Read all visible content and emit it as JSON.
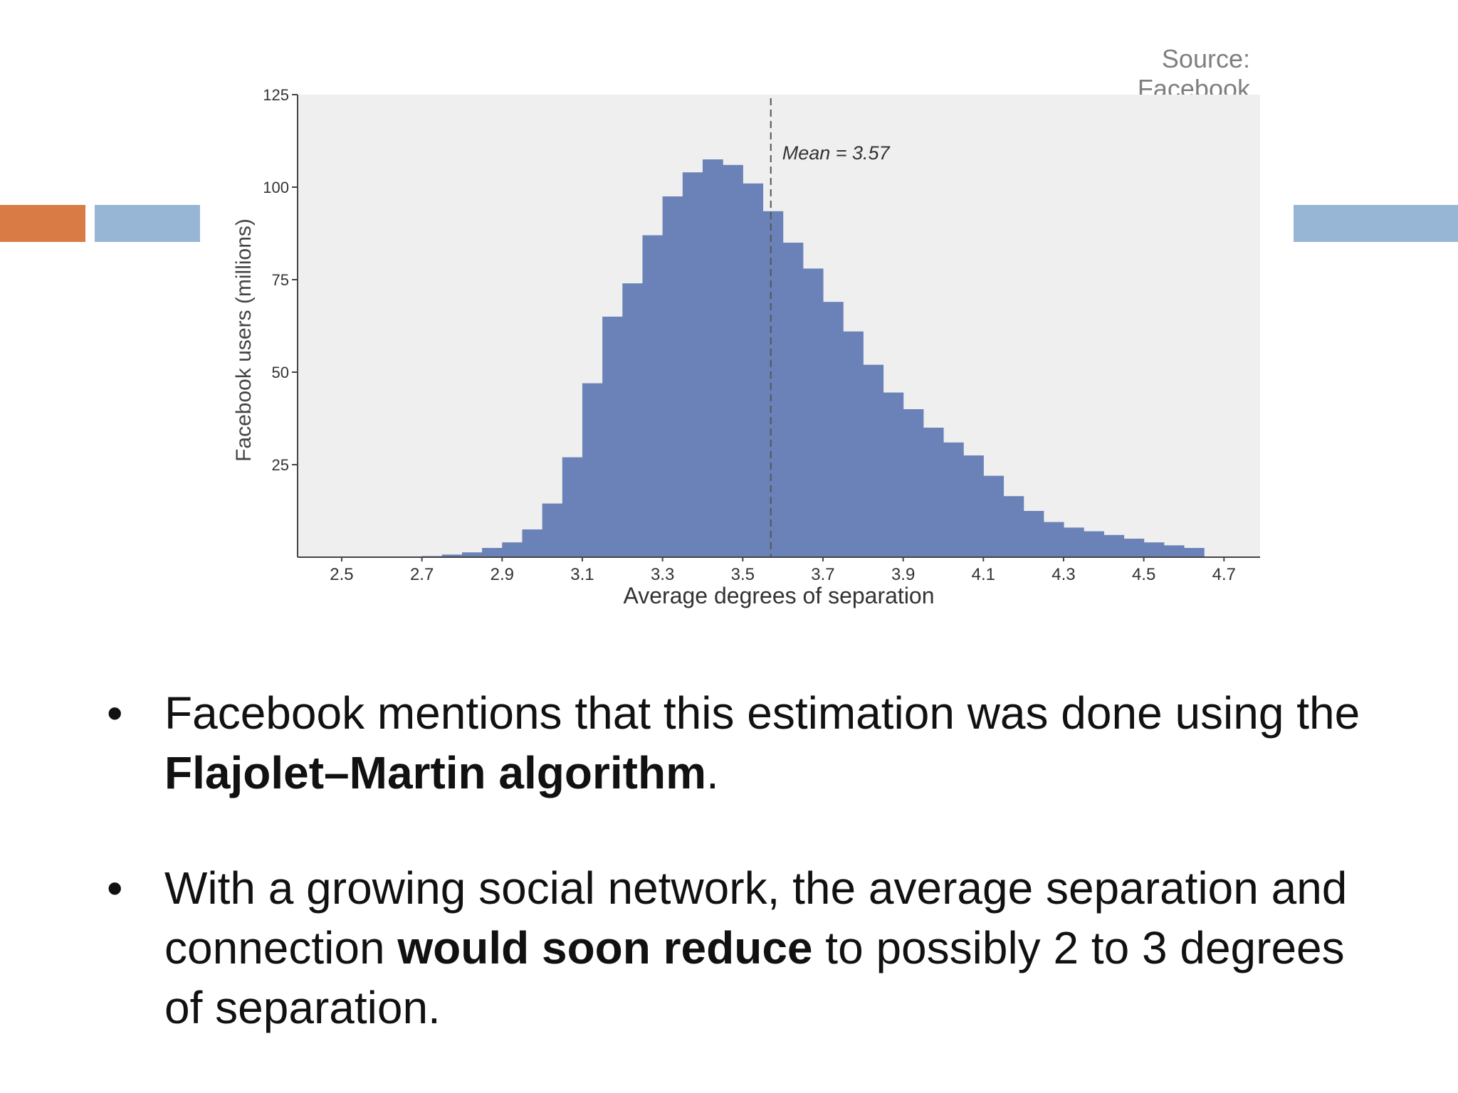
{
  "source": "Source: Facebook",
  "colors": {
    "accent_orange": "#d97b45",
    "accent_blue": "#97b6d6",
    "bar_fill": "#6b82b8",
    "plot_background": "#efefef"
  },
  "chart_data": {
    "type": "bar",
    "title": "",
    "xlabel": "Average degrees of separation",
    "ylabel": "Facebook users (millions)",
    "xlim": [
      2.39,
      4.79
    ],
    "ylim": [
      0,
      125
    ],
    "x_ticks": [
      "2.5",
      "2.7",
      "2.9",
      "3.1",
      "3.3",
      "3.5",
      "3.7",
      "3.9",
      "4.1",
      "4.3",
      "4.5",
      "4.7"
    ],
    "y_ticks": [
      "25",
      "50",
      "75",
      "100",
      "125"
    ],
    "bin_width": 0.05,
    "bin_starts": [
      2.7,
      2.75,
      2.8,
      2.85,
      2.9,
      2.95,
      3.0,
      3.05,
      3.1,
      3.15,
      3.2,
      3.25,
      3.3,
      3.35,
      3.4,
      3.45,
      3.5,
      3.55,
      3.6,
      3.65,
      3.7,
      3.75,
      3.8,
      3.85,
      3.9,
      3.95,
      4.0,
      4.05,
      4.1,
      4.15,
      4.2,
      4.25,
      4.3,
      4.35,
      4.4,
      4.45,
      4.5,
      4.55,
      4.6
    ],
    "values": [
      0.3,
      0.7,
      1.3,
      2.5,
      4,
      7.5,
      14.5,
      27,
      47,
      65,
      74,
      87,
      97.5,
      104,
      107.5,
      106,
      101,
      93.5,
      85,
      78,
      69,
      61,
      52,
      44.5,
      40,
      35,
      31,
      27.5,
      22,
      16.5,
      12.5,
      9.5,
      8,
      7,
      6,
      5,
      4,
      3.2,
      2.5
    ],
    "mean_line": {
      "x": 3.57,
      "label": "Mean = 3.57"
    },
    "grid": false,
    "legend": "none"
  },
  "bullets": [
    {
      "text_before": "Facebook mentions that this estimation was done using the ",
      "bold": "Flajolet–Martin algorithm",
      "text_after": "."
    },
    {
      "text_before": "With a growing social network, the average separation and connection ",
      "bold": "would soon reduce",
      "text_after": " to possibly 2 to 3 degrees of separation."
    }
  ]
}
